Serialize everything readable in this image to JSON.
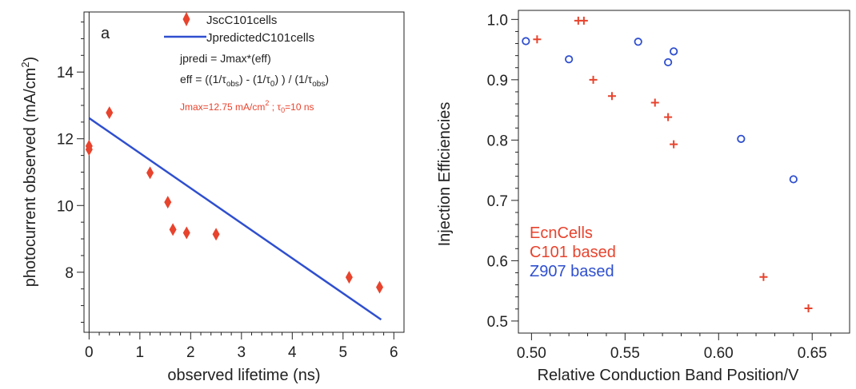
{
  "colors": {
    "red": "#e8432d",
    "blue": "#2f4fcf",
    "axis": "#222222"
  },
  "chart_data": [
    {
      "type": "scatter",
      "panel_label": "a",
      "xlabel": "observed lifetime (ns)",
      "ylabel_main": "photocurrent observed (mA/cm",
      "ylabel_sup": "2",
      "ylabel_end": ")",
      "xlim": [
        -0.1,
        6.2
      ],
      "ylim": [
        6.2,
        15.8
      ],
      "xticks": [
        0,
        1,
        2,
        3,
        4,
        5,
        6
      ],
      "xtick_labels": [
        "0",
        "1",
        "2",
        "3",
        "4",
        "5",
        "6"
      ],
      "yticks": [
        8,
        10,
        12,
        14
      ],
      "ytick_labels": [
        "8",
        "10",
        "12",
        "14"
      ],
      "vertical_line_x": 0,
      "series": [
        {
          "name": "JscC101cells",
          "marker": "diamond",
          "color": "#e8432d",
          "x": [
            0.0,
            0.0,
            0.4,
            1.2,
            1.55,
            1.65,
            1.92,
            2.5,
            5.12,
            5.72
          ],
          "y": [
            11.78,
            11.68,
            12.78,
            10.98,
            10.1,
            9.28,
            9.18,
            9.14,
            7.85,
            7.55
          ]
        },
        {
          "name": "JpredictedC101cells",
          "kind": "line",
          "color": "#2f4fcf",
          "x": [
            0.0,
            5.75
          ],
          "y": [
            12.62,
            6.58
          ]
        }
      ],
      "annotations": {
        "line1": "jpredi = Jmax*(eff)",
        "eff_prefix": "eff = ((1/τ",
        "eff_sub1": "obs",
        "eff_mid1": ")  - (1/τ",
        "eff_sub2": "0",
        "eff_mid2": ")  )  / (1/τ",
        "eff_sub3": "obs",
        "eff_end": ")",
        "param_a": "Jmax=12.75 mA/cm",
        "param_sup": "2",
        "param_b": " ; τ",
        "param_sub": "0",
        "param_c": "=10 ns"
      }
    },
    {
      "type": "scatter",
      "xlabel": "Relative Conduction Band Position/V",
      "ylabel": "Injection Efficiencies",
      "xlim": [
        0.493,
        0.67
      ],
      "ylim": [
        0.48,
        1.015
      ],
      "xticks": [
        0.5,
        0.55,
        0.6,
        0.65
      ],
      "xtick_labels": [
        "0.50",
        "0.55",
        "0.60",
        "0.65"
      ],
      "yticks": [
        0.5,
        0.6,
        0.7,
        0.8,
        0.9,
        1.0
      ],
      "ytick_labels": [
        "0.5",
        "0.6",
        "0.7",
        "0.8",
        "0.9",
        "1.0"
      ],
      "legend": {
        "title": "EcnCells",
        "c101": "C101 based",
        "z907": "Z907 based"
      },
      "series": [
        {
          "name": "C101 based",
          "marker": "plus",
          "color": "#e8432d",
          "x": [
            0.503,
            0.525,
            0.528,
            0.533,
            0.543,
            0.566,
            0.573,
            0.576,
            0.624,
            0.648
          ],
          "y": [
            0.967,
            0.998,
            0.998,
            0.9,
            0.873,
            0.862,
            0.838,
            0.793,
            0.573,
            0.521
          ]
        },
        {
          "name": "Z907 based",
          "marker": "circle",
          "color": "#2f4fcf",
          "x": [
            0.497,
            0.52,
            0.557,
            0.573,
            0.576,
            0.612,
            0.64
          ],
          "y": [
            0.964,
            0.934,
            0.963,
            0.929,
            0.947,
            0.802,
            0.735
          ]
        }
      ]
    }
  ]
}
